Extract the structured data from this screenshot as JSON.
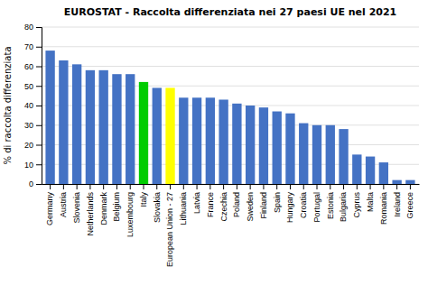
{
  "chart_data": {
    "type": "bar",
    "title": "EUROSTAT - Raccolta differenziata nei 27 paesi UE nel 2021",
    "ylabel": "% di raccolta differenziata",
    "categories": [
      "Germany",
      "Austria",
      "Slovenia",
      "Netherlands",
      "Denmark",
      "Belgium",
      "Luxembourg",
      "Italy",
      "Slovakia",
      "European Union - 27",
      "Lithuania",
      "Latvia",
      "France",
      "Czechia",
      "Poland",
      "Sweden",
      "Finland",
      "Spain",
      "Hungary",
      "Croatia",
      "Portugal",
      "Estonia",
      "Bulgaria",
      "Cyprus",
      "Malta",
      "Romania",
      "Ireland",
      "Greece"
    ],
    "values": [
      68,
      63,
      61,
      58,
      58,
      56,
      56,
      52,
      49,
      49,
      44,
      44,
      44,
      43,
      41,
      40,
      39,
      37,
      36,
      31,
      30,
      30,
      28,
      15,
      14,
      11,
      2,
      2
    ],
    "colors": [
      "#4472c4",
      "#4472c4",
      "#4472c4",
      "#4472c4",
      "#4472c4",
      "#4472c4",
      "#4472c4",
      "#00cc00",
      "#4472c4",
      "#ffff00",
      "#4472c4",
      "#4472c4",
      "#4472c4",
      "#4472c4",
      "#4472c4",
      "#4472c4",
      "#4472c4",
      "#4472c4",
      "#4472c4",
      "#4472c4",
      "#4472c4",
      "#4472c4",
      "#4472c4",
      "#4472c4",
      "#4472c4",
      "#4472c4",
      "#4472c4",
      "#4472c4"
    ],
    "ylim": [
      0,
      80
    ],
    "yticks": [
      0,
      10,
      20,
      30,
      40,
      50,
      60,
      70,
      80
    ],
    "grid": true
  }
}
